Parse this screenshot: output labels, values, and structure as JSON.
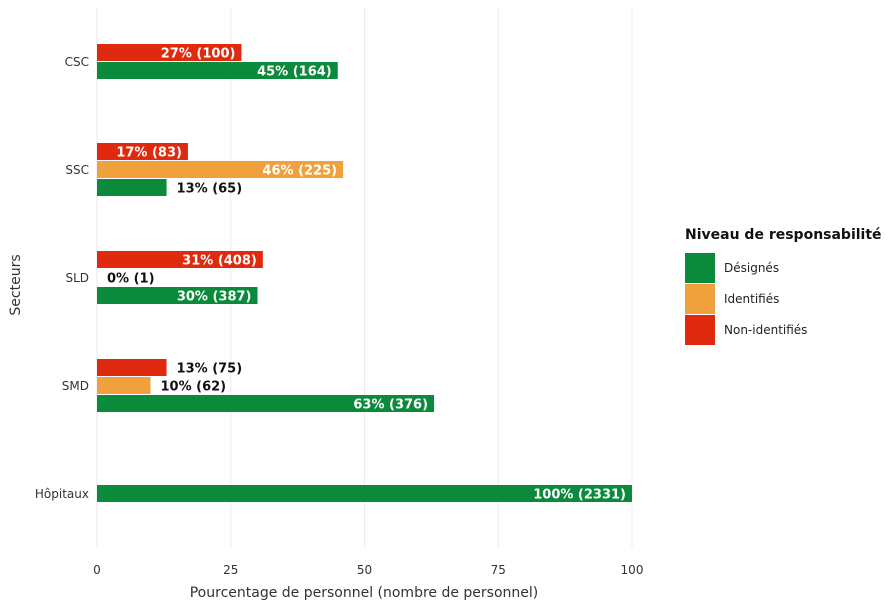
{
  "chart_data": {
    "type": "bar",
    "orientation": "horizontal",
    "xlabel": "Pourcentage de personnel (nombre de personnel)",
    "ylabel": "Secteurs",
    "xlim": [
      0,
      100
    ],
    "x_ticks": [
      "0",
      "25",
      "50",
      "75",
      "100"
    ],
    "grid": true,
    "legend_position": "right",
    "legend_title": "Niveau de responsabilité",
    "categories": [
      "CSC",
      "SSC",
      "SLD",
      "SMD",
      "Hôpitaux"
    ],
    "series": [
      {
        "name": "Désignés",
        "color": "#0a8a3a",
        "values": [
          45,
          13,
          30,
          63,
          100
        ],
        "labels": [
          "45% (164)",
          "13% (65)",
          "30% (387)",
          "63% (376)",
          "100% (2331)"
        ]
      },
      {
        "name": "Identifiés",
        "color": "#f0a03c",
        "values": [
          null,
          46,
          0,
          10,
          null
        ],
        "labels": [
          null,
          "46% (225)",
          "0% (1)",
          "10% (62)",
          null
        ]
      },
      {
        "name": "Non-identifiés",
        "color": "#e02a10",
        "values": [
          27,
          17,
          31,
          13,
          null
        ],
        "labels": [
          "27% (100)",
          "17% (83)",
          "31% (408)",
          "13% (75)",
          null
        ]
      }
    ]
  }
}
